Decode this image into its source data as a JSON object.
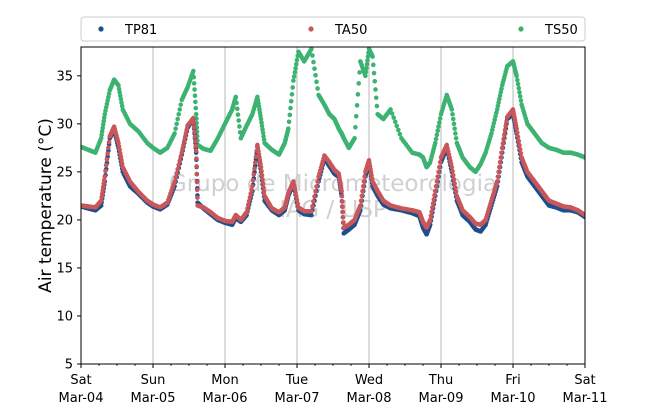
{
  "chart_data": {
    "type": "scatter",
    "ylabel": "Air temperature (°C)",
    "xlabel": "",
    "ylim": [
      5,
      38
    ],
    "yticks": [
      5,
      10,
      15,
      20,
      25,
      30,
      35
    ],
    "xlim_days": [
      0,
      7
    ],
    "xtick_labels": [
      [
        "Sat",
        "Mar-04"
      ],
      [
        "Sun",
        "Mar-05"
      ],
      [
        "Mon",
        "Mar-06"
      ],
      [
        "Tue",
        "Mar-07"
      ],
      [
        "Wed",
        "Mar-08"
      ],
      [
        "Thu",
        "Mar-09"
      ],
      [
        "Fri",
        "Mar-10"
      ],
      [
        "Sat",
        "Mar-11"
      ]
    ],
    "grid": "vertical",
    "legend_position": "top",
    "watermark": [
      "Grupo de Micrometeorologia",
      "IAG / USP"
    ],
    "series": [
      {
        "name": "TP81",
        "color": "#1f4e8c",
        "points": [
          [
            0.0,
            21.4
          ],
          [
            0.1,
            21.2
          ],
          [
            0.2,
            21.0
          ],
          [
            0.28,
            21.5
          ],
          [
            0.33,
            24.0
          ],
          [
            0.4,
            28.5
          ],
          [
            0.46,
            29.4
          ],
          [
            0.52,
            27.5
          ],
          [
            0.58,
            25.0
          ],
          [
            0.68,
            23.5
          ],
          [
            0.8,
            22.7
          ],
          [
            0.92,
            21.8
          ],
          [
            1.0,
            21.4
          ],
          [
            1.1,
            21.1
          ],
          [
            1.2,
            21.6
          ],
          [
            1.3,
            23.5
          ],
          [
            1.4,
            26.8
          ],
          [
            1.48,
            29.6
          ],
          [
            1.56,
            30.5
          ],
          [
            1.6,
            27.0
          ],
          [
            1.62,
            21.8
          ],
          [
            1.7,
            21.2
          ],
          [
            1.8,
            20.6
          ],
          [
            1.9,
            20.0
          ],
          [
            2.0,
            19.7
          ],
          [
            2.1,
            19.5
          ],
          [
            2.15,
            20.2
          ],
          [
            2.22,
            19.8
          ],
          [
            2.3,
            20.5
          ],
          [
            2.38,
            23.0
          ],
          [
            2.45,
            27.6
          ],
          [
            2.5,
            25.0
          ],
          [
            2.55,
            22.0
          ],
          [
            2.65,
            21.0
          ],
          [
            2.75,
            20.5
          ],
          [
            2.83,
            21.0
          ],
          [
            2.88,
            22.5
          ],
          [
            2.95,
            23.8
          ],
          [
            3.02,
            21.0
          ],
          [
            3.1,
            20.6
          ],
          [
            3.2,
            20.5
          ],
          [
            3.3,
            24.0
          ],
          [
            3.38,
            26.4
          ],
          [
            3.45,
            25.6
          ],
          [
            3.52,
            24.8
          ],
          [
            3.58,
            24.5
          ],
          [
            3.62,
            22.5
          ],
          [
            3.65,
            18.6
          ],
          [
            3.72,
            19.0
          ],
          [
            3.8,
            19.5
          ],
          [
            3.88,
            21.0
          ],
          [
            3.95,
            24.5
          ],
          [
            4.0,
            26.0
          ],
          [
            4.05,
            23.5
          ],
          [
            4.12,
            22.5
          ],
          [
            4.2,
            21.6
          ],
          [
            4.3,
            21.2
          ],
          [
            4.45,
            21.0
          ],
          [
            4.6,
            20.7
          ],
          [
            4.7,
            20.4
          ],
          [
            4.75,
            19.2
          ],
          [
            4.8,
            18.5
          ],
          [
            4.85,
            19.5
          ],
          [
            4.92,
            22.5
          ],
          [
            5.0,
            26.0
          ],
          [
            5.08,
            27.5
          ],
          [
            5.15,
            25.0
          ],
          [
            5.22,
            22.0
          ],
          [
            5.3,
            20.5
          ],
          [
            5.4,
            19.8
          ],
          [
            5.48,
            19.0
          ],
          [
            5.55,
            18.8
          ],
          [
            5.62,
            19.5
          ],
          [
            5.7,
            21.5
          ],
          [
            5.78,
            23.5
          ],
          [
            5.85,
            27.0
          ],
          [
            5.92,
            30.5
          ],
          [
            6.0,
            31.0
          ],
          [
            6.05,
            29.0
          ],
          [
            6.12,
            26.0
          ],
          [
            6.2,
            24.5
          ],
          [
            6.3,
            23.5
          ],
          [
            6.4,
            22.5
          ],
          [
            6.5,
            21.5
          ],
          [
            6.6,
            21.3
          ],
          [
            6.7,
            21.0
          ],
          [
            6.8,
            21.0
          ],
          [
            6.9,
            20.8
          ],
          [
            7.0,
            20.3
          ]
        ]
      },
      {
        "name": "TA50",
        "color": "#c9575a",
        "points": [
          [
            0.0,
            21.5
          ],
          [
            0.1,
            21.4
          ],
          [
            0.2,
            21.3
          ],
          [
            0.28,
            22.0
          ],
          [
            0.33,
            24.5
          ],
          [
            0.4,
            28.7
          ],
          [
            0.46,
            29.7
          ],
          [
            0.52,
            28.0
          ],
          [
            0.58,
            25.5
          ],
          [
            0.68,
            24.0
          ],
          [
            0.8,
            22.9
          ],
          [
            0.92,
            22.0
          ],
          [
            1.0,
            21.6
          ],
          [
            1.1,
            21.3
          ],
          [
            1.2,
            21.8
          ],
          [
            1.3,
            24.0
          ],
          [
            1.4,
            27.0
          ],
          [
            1.48,
            29.8
          ],
          [
            1.56,
            30.6
          ],
          [
            1.6,
            27.2
          ],
          [
            1.62,
            21.5
          ],
          [
            1.7,
            21.3
          ],
          [
            1.8,
            20.8
          ],
          [
            1.9,
            20.2
          ],
          [
            2.0,
            19.9
          ],
          [
            2.1,
            19.8
          ],
          [
            2.15,
            20.5
          ],
          [
            2.22,
            20.0
          ],
          [
            2.3,
            20.8
          ],
          [
            2.38,
            23.5
          ],
          [
            2.45,
            27.8
          ],
          [
            2.5,
            25.5
          ],
          [
            2.55,
            22.5
          ],
          [
            2.65,
            21.2
          ],
          [
            2.75,
            20.8
          ],
          [
            2.83,
            21.3
          ],
          [
            2.88,
            22.8
          ],
          [
            2.95,
            24.0
          ],
          [
            3.02,
            21.3
          ],
          [
            3.1,
            20.9
          ],
          [
            3.2,
            20.9
          ],
          [
            3.3,
            24.5
          ],
          [
            3.38,
            26.7
          ],
          [
            3.45,
            26.0
          ],
          [
            3.52,
            25.2
          ],
          [
            3.58,
            24.8
          ],
          [
            3.62,
            23.0
          ],
          [
            3.65,
            19.2
          ],
          [
            3.72,
            19.5
          ],
          [
            3.8,
            20.0
          ],
          [
            3.88,
            21.5
          ],
          [
            3.95,
            25.0
          ],
          [
            4.0,
            26.2
          ],
          [
            4.05,
            24.0
          ],
          [
            4.12,
            23.0
          ],
          [
            4.2,
            22.0
          ],
          [
            4.3,
            21.5
          ],
          [
            4.45,
            21.2
          ],
          [
            4.6,
            21.0
          ],
          [
            4.7,
            20.8
          ],
          [
            4.75,
            19.8
          ],
          [
            4.8,
            19.2
          ],
          [
            4.85,
            20.0
          ],
          [
            4.92,
            23.0
          ],
          [
            5.0,
            26.5
          ],
          [
            5.08,
            27.8
          ],
          [
            5.15,
            25.5
          ],
          [
            5.22,
            22.5
          ],
          [
            5.3,
            21.0
          ],
          [
            5.4,
            20.3
          ],
          [
            5.48,
            19.6
          ],
          [
            5.55,
            19.5
          ],
          [
            5.62,
            20.0
          ],
          [
            5.7,
            22.0
          ],
          [
            5.78,
            24.0
          ],
          [
            5.85,
            27.5
          ],
          [
            5.92,
            30.7
          ],
          [
            6.0,
            31.5
          ],
          [
            6.05,
            29.5
          ],
          [
            6.12,
            26.5
          ],
          [
            6.2,
            25.0
          ],
          [
            6.3,
            24.0
          ],
          [
            6.4,
            23.0
          ],
          [
            6.5,
            22.0
          ],
          [
            6.6,
            21.7
          ],
          [
            6.7,
            21.4
          ],
          [
            6.8,
            21.3
          ],
          [
            6.9,
            21.0
          ],
          [
            7.0,
            20.5
          ]
        ]
      },
      {
        "name": "TS50",
        "color": "#3cb371",
        "points": [
          [
            0.0,
            27.6
          ],
          [
            0.1,
            27.3
          ],
          [
            0.2,
            27.0
          ],
          [
            0.28,
            28.5
          ],
          [
            0.33,
            31.0
          ],
          [
            0.4,
            33.5
          ],
          [
            0.46,
            34.6
          ],
          [
            0.52,
            34.0
          ],
          [
            0.58,
            31.5
          ],
          [
            0.68,
            30.0
          ],
          [
            0.8,
            29.2
          ],
          [
            0.92,
            28.0
          ],
          [
            1.0,
            27.5
          ],
          [
            1.1,
            27.0
          ],
          [
            1.2,
            27.5
          ],
          [
            1.3,
            29.0
          ],
          [
            1.4,
            32.5
          ],
          [
            1.48,
            33.8
          ],
          [
            1.56,
            35.5
          ],
          [
            1.6,
            31.0
          ],
          [
            1.62,
            27.8
          ],
          [
            1.7,
            27.4
          ],
          [
            1.8,
            27.2
          ],
          [
            1.9,
            28.5
          ],
          [
            2.0,
            30.0
          ],
          [
            2.1,
            31.5
          ],
          [
            2.15,
            32.8
          ],
          [
            2.22,
            28.5
          ],
          [
            2.3,
            29.8
          ],
          [
            2.38,
            31.0
          ],
          [
            2.45,
            32.8
          ],
          [
            2.5,
            30.5
          ],
          [
            2.55,
            28.0
          ],
          [
            2.65,
            27.3
          ],
          [
            2.75,
            26.8
          ],
          [
            2.83,
            28.0
          ],
          [
            2.88,
            29.5
          ],
          [
            2.95,
            34.5
          ],
          [
            3.02,
            37.5
          ],
          [
            3.1,
            36.5
          ],
          [
            3.2,
            37.8
          ],
          [
            3.3,
            33.0
          ],
          [
            3.38,
            32.0
          ],
          [
            3.45,
            31.0
          ],
          [
            3.52,
            30.5
          ],
          [
            3.58,
            29.5
          ],
          [
            3.62,
            29.0
          ],
          [
            3.65,
            28.5
          ],
          [
            3.72,
            27.5
          ],
          [
            3.8,
            28.5
          ],
          [
            3.88,
            36.5
          ],
          [
            3.95,
            35.0
          ],
          [
            4.0,
            37.8
          ],
          [
            4.05,
            37.0
          ],
          [
            4.12,
            31.0
          ],
          [
            4.2,
            30.5
          ],
          [
            4.3,
            31.5
          ],
          [
            4.45,
            28.5
          ],
          [
            4.6,
            27.0
          ],
          [
            4.7,
            26.8
          ],
          [
            4.75,
            26.5
          ],
          [
            4.8,
            25.5
          ],
          [
            4.85,
            26.0
          ],
          [
            4.92,
            28.0
          ],
          [
            5.0,
            31.0
          ],
          [
            5.08,
            33.0
          ],
          [
            5.15,
            31.5
          ],
          [
            5.22,
            28.0
          ],
          [
            5.3,
            26.5
          ],
          [
            5.4,
            25.5
          ],
          [
            5.48,
            25.0
          ],
          [
            5.55,
            25.8
          ],
          [
            5.62,
            27.0
          ],
          [
            5.7,
            29.0
          ],
          [
            5.78,
            31.5
          ],
          [
            5.85,
            34.0
          ],
          [
            5.92,
            36.0
          ],
          [
            6.0,
            36.5
          ],
          [
            6.05,
            35.0
          ],
          [
            6.12,
            32.0
          ],
          [
            6.2,
            30.0
          ],
          [
            6.3,
            29.0
          ],
          [
            6.4,
            28.0
          ],
          [
            6.5,
            27.5
          ],
          [
            6.6,
            27.3
          ],
          [
            6.7,
            27.0
          ],
          [
            6.8,
            27.0
          ],
          [
            6.9,
            26.8
          ],
          [
            7.0,
            26.5
          ]
        ]
      }
    ]
  }
}
